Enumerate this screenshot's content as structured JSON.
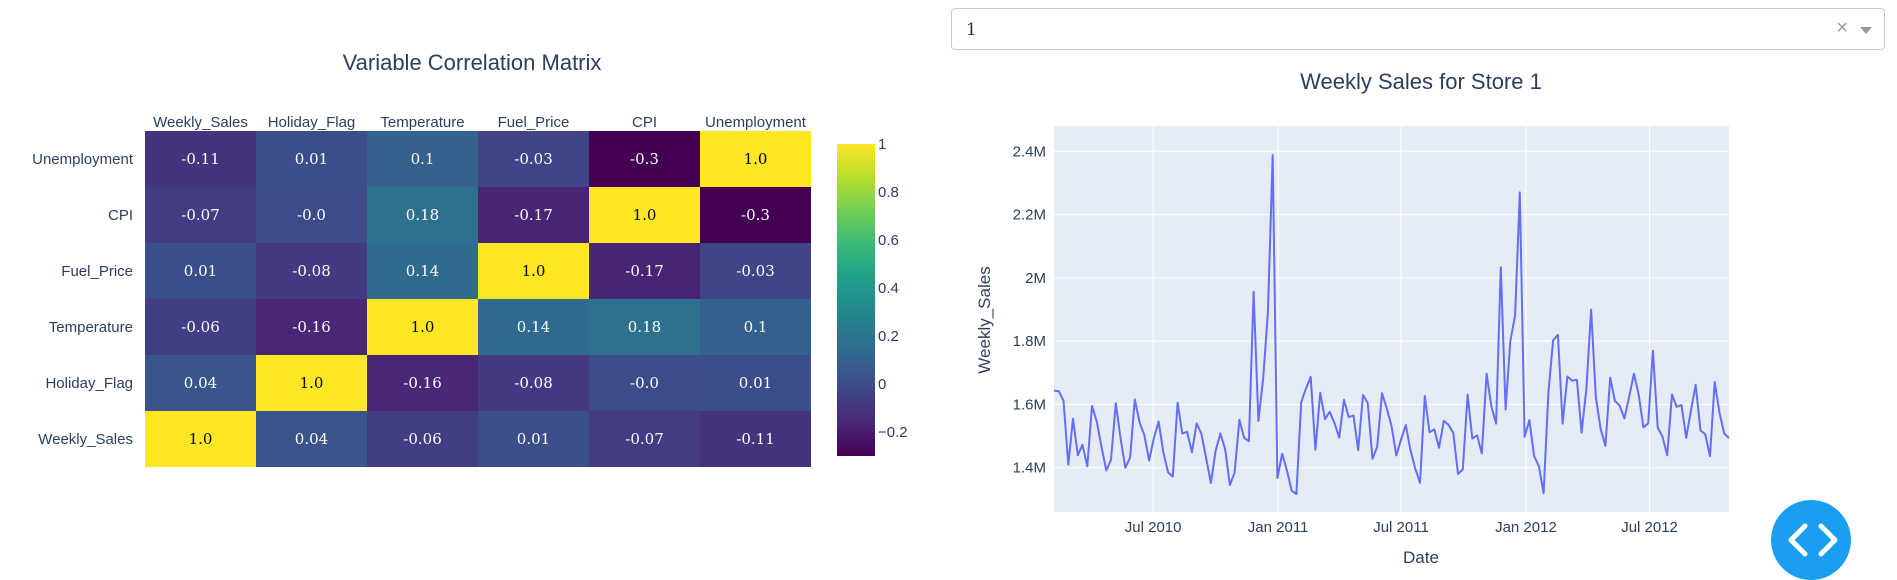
{
  "dropdown": {
    "value": "1",
    "clear_symbol": "×"
  },
  "fab": {
    "icon": "code-icon",
    "color": "#1a9ff0"
  },
  "chart_data": [
    {
      "type": "heatmap",
      "title": "Variable Correlation Matrix",
      "x_labels": [
        "Weekly_Sales",
        "Holiday_Flag",
        "Temperature",
        "Fuel_Price",
        "CPI",
        "Unemployment"
      ],
      "y_labels": [
        "Unemployment",
        "CPI",
        "Fuel_Price",
        "Temperature",
        "Holiday_Flag",
        "Weekly_Sales"
      ],
      "z": [
        [
          -0.11,
          0.01,
          0.1,
          -0.03,
          -0.3,
          1.0
        ],
        [
          -0.07,
          -0.0,
          0.18,
          -0.17,
          1.0,
          -0.3
        ],
        [
          0.01,
          -0.08,
          0.14,
          1.0,
          -0.17,
          -0.03
        ],
        [
          -0.06,
          -0.16,
          1.0,
          0.14,
          0.18,
          0.1
        ],
        [
          0.04,
          1.0,
          -0.16,
          -0.08,
          -0.0,
          0.01
        ],
        [
          1.0,
          0.04,
          -0.06,
          0.01,
          -0.07,
          -0.11
        ]
      ],
      "z_text": [
        [
          "-0.11",
          "0.01",
          "0.1",
          "-0.03",
          "-0.3",
          "1.0"
        ],
        [
          "-0.07",
          "-0.0",
          "0.18",
          "-0.17",
          "1.0",
          "-0.3"
        ],
        [
          "0.01",
          "-0.08",
          "0.14",
          "1.0",
          "-0.17",
          "-0.03"
        ],
        [
          "-0.06",
          "-0.16",
          "1.0",
          "0.14",
          "0.18",
          "0.1"
        ],
        [
          "0.04",
          "1.0",
          "-0.16",
          "-0.08",
          "-0.0",
          "0.01"
        ],
        [
          "1.0",
          "0.04",
          "-0.06",
          "0.01",
          "-0.07",
          "-0.11"
        ]
      ],
      "colorscale": "Viridis",
      "zmin": -0.3,
      "zmax": 1.0,
      "colorbar_ticks": [
        "1",
        "0.8",
        "0.6",
        "0.4",
        "0.2",
        "0",
        "−0.2"
      ],
      "colorbar_tick_values": [
        1,
        0.8,
        0.6,
        0.4,
        0.2,
        0,
        -0.2
      ],
      "x_axis_side": "top"
    },
    {
      "type": "line",
      "title": "Weekly Sales for Store 1",
      "xlabel": "Date",
      "ylabel": "Weekly_Sales",
      "x_start": "2010-02-05",
      "x_step_days": 7,
      "xlim": [
        "2010-02-05",
        "2012-10-26"
      ],
      "ylim": [
        1260000,
        2480000
      ],
      "x_ticks": [
        {
          "date": "2010-07-01",
          "label": "Jul 2010"
        },
        {
          "date": "2011-01-01",
          "label": "Jan 2011"
        },
        {
          "date": "2011-07-01",
          "label": "Jul 2011"
        },
        {
          "date": "2012-01-01",
          "label": "Jan 2012"
        },
        {
          "date": "2012-07-01",
          "label": "Jul 2012"
        }
      ],
      "y_ticks": [
        {
          "value": 1400000,
          "label": "1.4M"
        },
        {
          "value": 1600000,
          "label": "1.6M"
        },
        {
          "value": 1800000,
          "label": "1.8M"
        },
        {
          "value": 2000000,
          "label": "2M"
        },
        {
          "value": 2200000,
          "label": "2.2M"
        },
        {
          "value": 2400000,
          "label": "2.4M"
        }
      ],
      "line_color": "#636efa",
      "plot_bg": "#e5ecf6",
      "grid": true,
      "series": [
        {
          "values": [
            1643691,
            1641957,
            1611968,
            1409728,
            1554807,
            1439542,
            1472516,
            1404430,
            1594968,
            1545419,
            1466058,
            1391257,
            1425101,
            1603956,
            1494251,
            1399663,
            1432069,
            1615525,
            1542561,
            1503284,
            1422711,
            1492418,
            1546074,
            1448938,
            1385066,
            1371987,
            1605492,
            1508240,
            1513081,
            1449143,
            1540163,
            1507460,
            1430379,
            1351791,
            1453330,
            1508239,
            1459409,
            1345454,
            1384209,
            1551659,
            1494479,
            1483784,
            1955624,
            1548034,
            1682615,
            1891034,
            2387950,
            1367320,
            1444732,
            1391013,
            1327405,
            1316899,
            1606629,
            1649615,
            1686843,
            1456800,
            1636339,
            1553191,
            1576819,
            1541103,
            1495064,
            1614260,
            1559889,
            1564820,
            1455090,
            1629391,
            1604776,
            1428218,
            1466046,
            1635078,
            1588430,
            1532114,
            1438830,
            1488538,
            1534849,
            1455119,
            1396927,
            1352219,
            1626655,
            1512224,
            1520935,
            1462954,
            1548038,
            1535985,
            1509780,
            1380020,
            1394561,
            1630989,
            1492030,
            1502562,
            1445249,
            1697229,
            1594938,
            1539483,
            2033321,
            1584083,
            1799682,
            1881176,
            2270189,
            1497463,
            1550229,
            1436597,
            1404430,
            1319325,
            1636640,
            1802478,
            1819871,
            1539387,
            1688420,
            1675431,
            1677472,
            1511068,
            1649604,
            1899677,
            1621031,
            1521578,
            1468928,
            1684520,
            1611096,
            1595901,
            1555444,
            1624477,
            1697230,
            1630607,
            1527845,
            1540421,
            1769854,
            1527014,
            1497955,
            1439123,
            1631136,
            1592410,
            1597868,
            1494123,
            1582083,
            1661767,
            1517428,
            1506126,
            1437059,
            1670786,
            1573073,
            1508069,
            1493659
          ]
        }
      ]
    }
  ]
}
